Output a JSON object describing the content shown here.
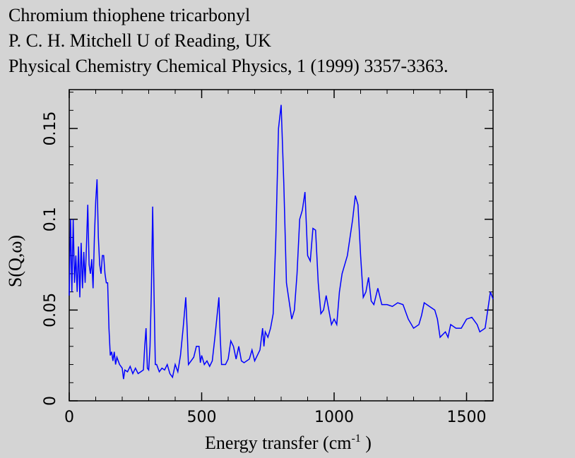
{
  "chart_data": {
    "type": "line",
    "title_lines": [
      "Chromium thiophene tricarbonyl",
      "P. C. H. Mitchell U of Reading, UK",
      "Physical Chemistry Chemical Physics, 1 (1999) 3357-3363."
    ],
    "ylabel": "S(Q,ω)",
    "xlabel": {
      "text": "Energy transfer (cm",
      "sup": "-1",
      "tail": " )"
    },
    "xlim": [
      0,
      1600
    ],
    "xticks": [
      0,
      500,
      1000,
      1500
    ],
    "ylim": [
      0,
      0.1714
    ],
    "yticks": [
      0,
      0.05,
      0.1,
      0.15
    ],
    "series": [
      {
        "color": "#0000ff",
        "x": [
          0,
          5,
          10,
          15,
          20,
          25,
          30,
          35,
          40,
          45,
          50,
          55,
          60,
          65,
          70,
          75,
          80,
          85,
          90,
          95,
          100,
          105,
          110,
          115,
          120,
          125,
          130,
          135,
          140,
          145,
          150,
          155,
          160,
          165,
          170,
          175,
          180,
          190,
          200,
          205,
          210,
          220,
          230,
          240,
          250,
          260,
          270,
          280,
          285,
          290,
          295,
          300,
          305,
          310,
          315,
          320,
          325,
          330,
          340,
          350,
          360,
          370,
          380,
          390,
          400,
          410,
          420,
          430,
          440,
          445,
          450,
          460,
          470,
          480,
          490,
          495,
          500,
          510,
          520,
          530,
          540,
          550,
          565,
          570,
          575,
          590,
          600,
          610,
          620,
          630,
          640,
          650,
          660,
          680,
          690,
          700,
          710,
          720,
          730,
          735,
          740,
          750,
          760,
          770,
          780,
          790,
          800,
          810,
          820,
          840,
          850,
          860,
          870,
          880,
          890,
          900,
          910,
          920,
          930,
          940,
          950,
          960,
          970,
          980,
          990,
          1000,
          1010,
          1020,
          1030,
          1050,
          1070,
          1080,
          1090,
          1100,
          1110,
          1120,
          1130,
          1140,
          1150,
          1165,
          1180,
          1200,
          1220,
          1240,
          1260,
          1280,
          1300,
          1320,
          1330,
          1340,
          1360,
          1380,
          1390,
          1400,
          1420,
          1430,
          1440,
          1460,
          1480,
          1500,
          1520,
          1540,
          1550,
          1570,
          1580,
          1590,
          1600
        ],
        "values": [
          0.058,
          0.1,
          0.06,
          0.1,
          0.065,
          0.08,
          0.06,
          0.085,
          0.057,
          0.087,
          0.062,
          0.082,
          0.065,
          0.085,
          0.108,
          0.075,
          0.07,
          0.078,
          0.062,
          0.09,
          0.11,
          0.122,
          0.09,
          0.075,
          0.07,
          0.08,
          0.08,
          0.07,
          0.065,
          0.065,
          0.04,
          0.025,
          0.027,
          0.022,
          0.027,
          0.02,
          0.024,
          0.02,
          0.018,
          0.012,
          0.017,
          0.016,
          0.019,
          0.015,
          0.018,
          0.015,
          0.016,
          0.017,
          0.03,
          0.04,
          0.018,
          0.017,
          0.03,
          0.06,
          0.107,
          0.06,
          0.02,
          0.02,
          0.016,
          0.018,
          0.017,
          0.02,
          0.015,
          0.013,
          0.02,
          0.016,
          0.025,
          0.04,
          0.057,
          0.04,
          0.02,
          0.022,
          0.024,
          0.03,
          0.03,
          0.021,
          0.025,
          0.02,
          0.022,
          0.019,
          0.022,
          0.035,
          0.057,
          0.035,
          0.02,
          0.02,
          0.023,
          0.033,
          0.03,
          0.023,
          0.03,
          0.022,
          0.021,
          0.023,
          0.028,
          0.022,
          0.025,
          0.028,
          0.04,
          0.03,
          0.038,
          0.035,
          0.04,
          0.048,
          0.09,
          0.15,
          0.163,
          0.12,
          0.065,
          0.045,
          0.05,
          0.07,
          0.1,
          0.105,
          0.115,
          0.08,
          0.077,
          0.095,
          0.094,
          0.065,
          0.048,
          0.05,
          0.058,
          0.05,
          0.042,
          0.045,
          0.042,
          0.06,
          0.07,
          0.08,
          0.1,
          0.113,
          0.108,
          0.08,
          0.057,
          0.06,
          0.068,
          0.055,
          0.053,
          0.062,
          0.053,
          0.053,
          0.052,
          0.054,
          0.053,
          0.045,
          0.04,
          0.042,
          0.047,
          0.054,
          0.052,
          0.05,
          0.045,
          0.035,
          0.038,
          0.035,
          0.042,
          0.04,
          0.04,
          0.045,
          0.046,
          0.042,
          0.038,
          0.04,
          0.05,
          0.06,
          0.056
        ]
      }
    ]
  }
}
